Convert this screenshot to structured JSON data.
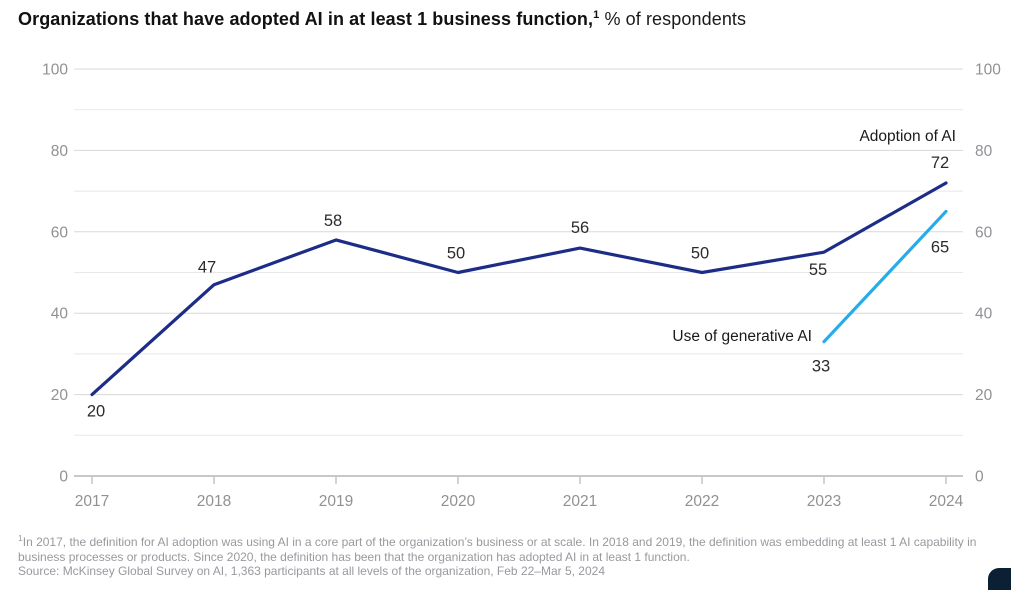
{
  "title": {
    "bold": "Organizations that have adopted AI in at least 1 business function,",
    "superscript": "1",
    "rest": " % of respondents"
  },
  "chart_data": {
    "type": "line",
    "x": [
      2017,
      2018,
      2019,
      2020,
      2021,
      2022,
      2023,
      2024
    ],
    "series": [
      {
        "name": "Adoption of AI",
        "color": "#1d2d87",
        "values": [
          20,
          47,
          58,
          50,
          56,
          50,
          55,
          72
        ]
      },
      {
        "name": "Use of generative AI",
        "color": "#27aceb",
        "values": [
          null,
          null,
          null,
          null,
          null,
          null,
          33,
          65
        ]
      }
    ],
    "ylim": [
      0,
      100
    ],
    "yticks": [
      0,
      20,
      40,
      60,
      80,
      100
    ],
    "minor_gridlines": [
      10,
      30,
      50,
      70,
      90
    ],
    "grid": "horizontal",
    "legend_position": "inline-annotations-right",
    "dual_y_axis": true,
    "axis_label_color": "#8f9194",
    "data_label_color": "#2b2b2b",
    "major_grid_color": "#d8d8d8",
    "minor_grid_color": "#e8e8e8",
    "axis_line_color": "#b5b5b5"
  },
  "footnote": {
    "marker": "1",
    "text": "In 2017, the definition for AI adoption was using AI in a core part of the organization’s business or at scale. In 2018 and 2019, the definition was embedding at least 1 AI capability in business processes or products. Since 2020, the definition has been that the organization has adopted AI in at least 1 function.",
    "source": "Source: McKinsey Global Survey on AI, 1,363 participants at all levels of the organization, Feb 22–Mar 5, 2024"
  },
  "corner_widget": {
    "color": "#0b2033"
  }
}
